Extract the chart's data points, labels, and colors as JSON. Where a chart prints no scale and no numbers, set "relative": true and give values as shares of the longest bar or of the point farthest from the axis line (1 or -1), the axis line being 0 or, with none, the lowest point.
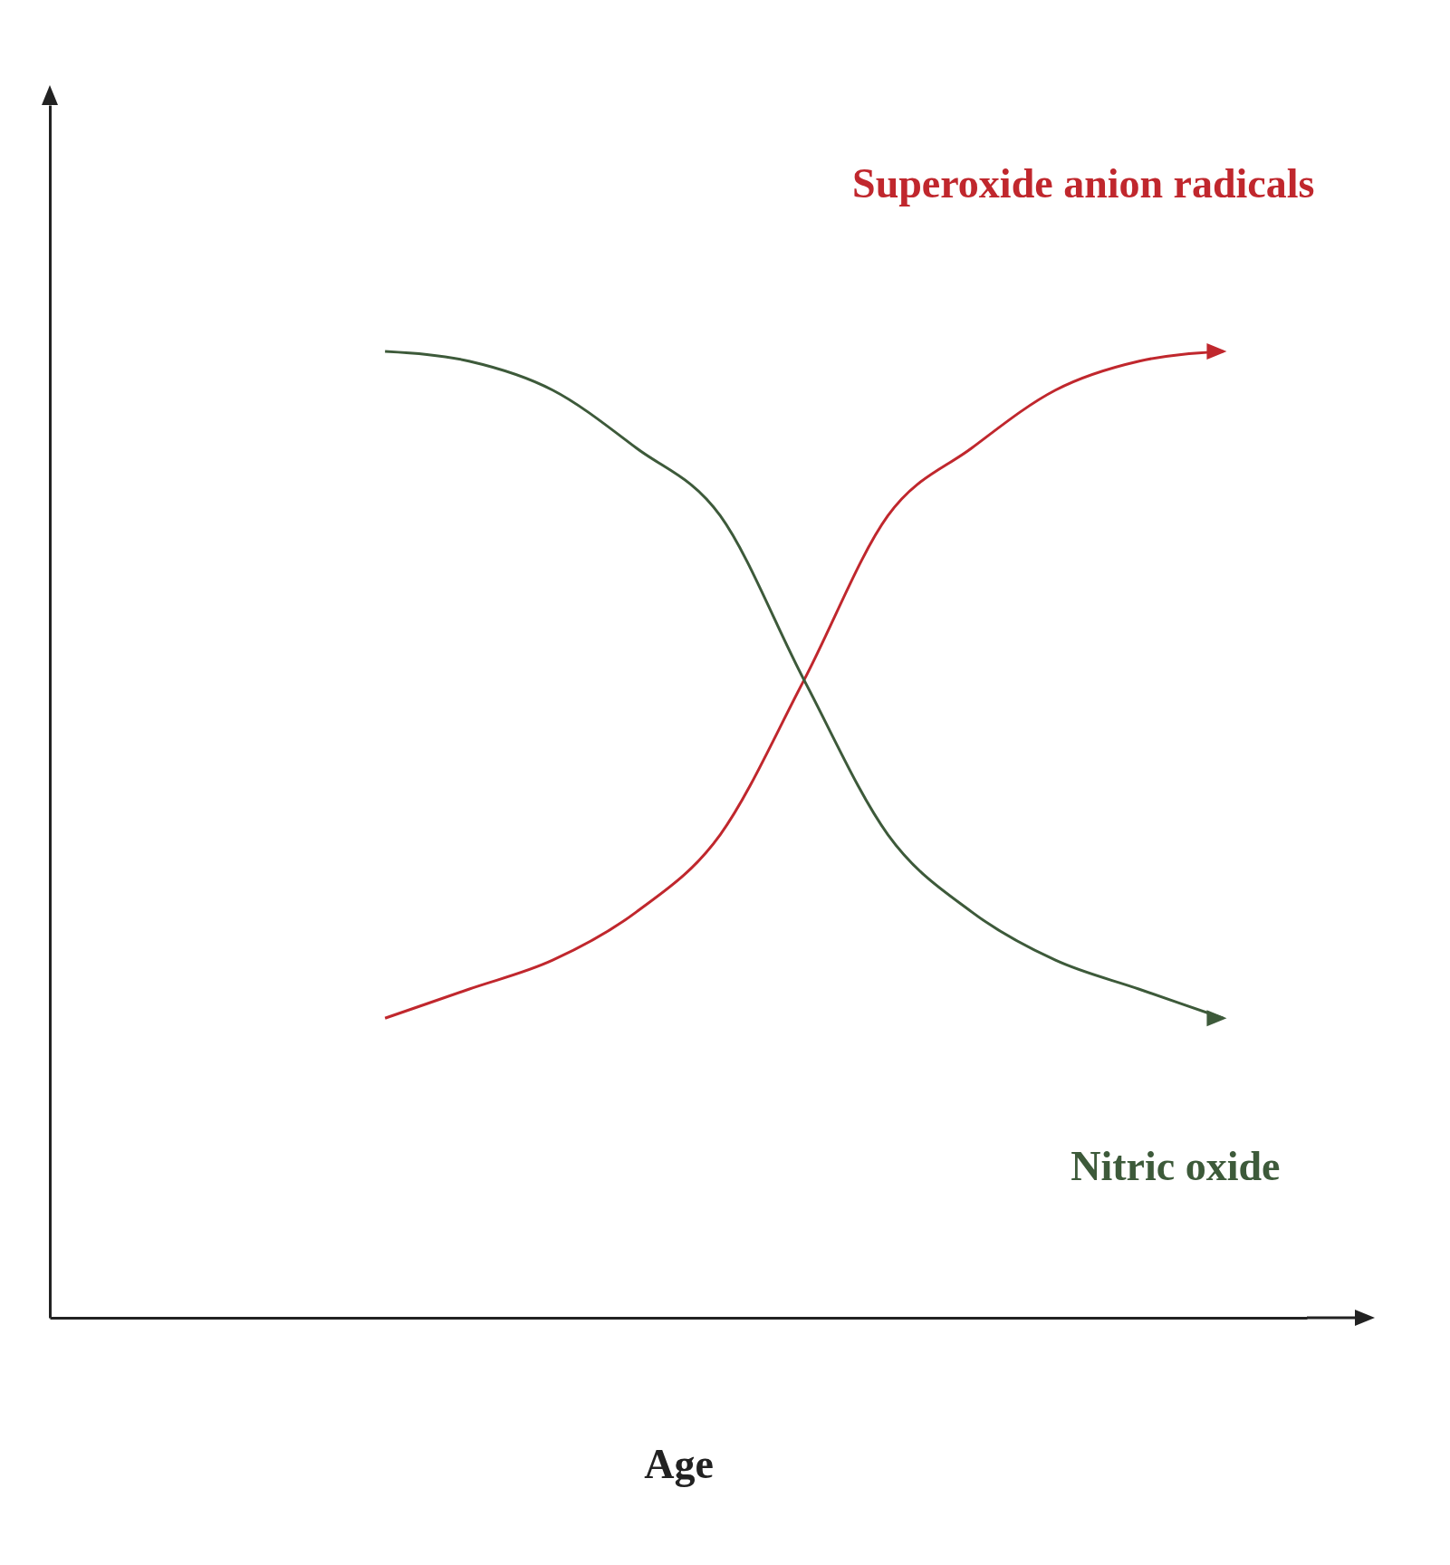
{
  "chart_data": {
    "type": "line",
    "relative": true,
    "xlabel": "Age",
    "categories": [
      null,
      null,
      null,
      null,
      null,
      null,
      null,
      null,
      null,
      null,
      null,
      null,
      null,
      null,
      null,
      null
    ],
    "series": [
      {
        "name": "Superoxide anion radicals",
        "color": "#c0272d",
        "values": [
          null,
          null,
          null,
          null,
          0.31,
          0.34,
          0.37,
          0.42,
          0.5,
          0.66,
          0.83,
          0.9,
          0.96,
          0.99,
          1.0,
          null
        ]
      },
      {
        "name": "Nitric oxide",
        "color": "#3d5a3a",
        "values": [
          null,
          null,
          null,
          null,
          1.0,
          0.99,
          0.96,
          0.9,
          0.83,
          0.66,
          0.5,
          0.42,
          0.37,
          0.34,
          0.31,
          null
        ]
      }
    ]
  }
}
